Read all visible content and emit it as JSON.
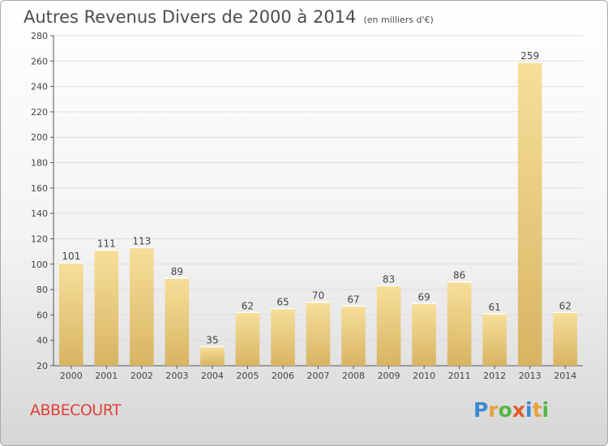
{
  "title": "Autres Revenus Divers de 2000 à 2014",
  "subtitle": "(en milliers d'€)",
  "commune": "ABBECOURT",
  "logo": {
    "letters": [
      "P",
      "r",
      "o",
      "x",
      "i",
      "t",
      "i"
    ],
    "colors": [
      "#3a8ad0",
      "#e8a23a",
      "#58b547",
      "#e05a2a",
      "#3a8ad0",
      "#e8a23a",
      "#58b547"
    ]
  },
  "colors": {
    "bar_light": "#f7df9a",
    "bar_dark": "#d8b463",
    "grid": "#dddddd",
    "axis": "#555555",
    "label": "#444444"
  },
  "chart_data": {
    "type": "bar",
    "title": "Autres Revenus Divers de 2000 à 2014",
    "categories": [
      "2000",
      "2001",
      "2002",
      "2003",
      "2004",
      "2005",
      "2006",
      "2007",
      "2008",
      "2009",
      "2010",
      "2011",
      "2012",
      "2013",
      "2014"
    ],
    "values": [
      101,
      111,
      113,
      89,
      35,
      62,
      65,
      70,
      67,
      83,
      69,
      86,
      61,
      259,
      62
    ],
    "ylim": [
      20,
      280
    ],
    "yticks": [
      20,
      40,
      60,
      80,
      100,
      120,
      140,
      160,
      180,
      200,
      220,
      240,
      260,
      280
    ],
    "grid": true
  }
}
